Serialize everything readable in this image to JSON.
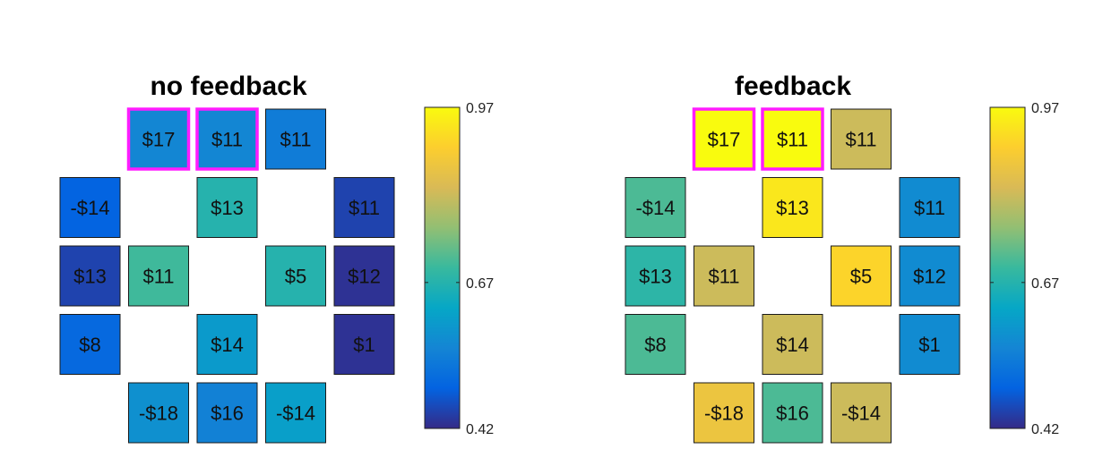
{
  "chart_data": [
    {
      "type": "heatmap",
      "title": "no feedback",
      "colorbar": {
        "min": 0.42,
        "max": 0.97,
        "ticks": [
          "0.97",
          "0.67",
          "0.42"
        ],
        "colormap": "parula"
      },
      "cells": [
        {
          "row": 0,
          "col": 1,
          "label": "$17",
          "value": 0.56,
          "highlight": true
        },
        {
          "row": 0,
          "col": 2,
          "label": "$11",
          "value": 0.56,
          "highlight": true
        },
        {
          "row": 0,
          "col": 3,
          "label": "$11",
          "value": 0.54,
          "highlight": false
        },
        {
          "row": 1,
          "col": 0,
          "label": "-$14",
          "value": 0.49,
          "highlight": false
        },
        {
          "row": 1,
          "col": 2,
          "label": "$13",
          "value": 0.67,
          "highlight": false
        },
        {
          "row": 1,
          "col": 4,
          "label": "$11",
          "value": 0.45,
          "highlight": false
        },
        {
          "row": 2,
          "col": 0,
          "label": "$13",
          "value": 0.45,
          "highlight": false
        },
        {
          "row": 2,
          "col": 1,
          "label": "$11",
          "value": 0.7,
          "highlight": false
        },
        {
          "row": 2,
          "col": 3,
          "label": "$5",
          "value": 0.67,
          "highlight": false
        },
        {
          "row": 2,
          "col": 4,
          "label": "$12",
          "value": 0.43,
          "highlight": false
        },
        {
          "row": 3,
          "col": 0,
          "label": "$8",
          "value": 0.5,
          "highlight": false
        },
        {
          "row": 3,
          "col": 2,
          "label": "$14",
          "value": 0.6,
          "highlight": false
        },
        {
          "row": 3,
          "col": 4,
          "label": "$1",
          "value": 0.43,
          "highlight": false
        },
        {
          "row": 4,
          "col": 1,
          "label": "-$18",
          "value": 0.58,
          "highlight": false
        },
        {
          "row": 4,
          "col": 2,
          "label": "$16",
          "value": 0.55,
          "highlight": false
        },
        {
          "row": 4,
          "col": 3,
          "label": "-$14",
          "value": 0.61,
          "highlight": false
        }
      ]
    },
    {
      "type": "heatmap",
      "title": "feedback",
      "colorbar": {
        "min": 0.42,
        "max": 0.97,
        "ticks": [
          "0.97",
          "0.67",
          "0.42"
        ],
        "colormap": "parula"
      },
      "cells": [
        {
          "row": 0,
          "col": 1,
          "label": "$17",
          "value": 0.97,
          "highlight": true
        },
        {
          "row": 0,
          "col": 2,
          "label": "$11",
          "value": 0.97,
          "highlight": true
        },
        {
          "row": 0,
          "col": 3,
          "label": "$11",
          "value": 0.82,
          "highlight": false
        },
        {
          "row": 1,
          "col": 0,
          "label": "-$14",
          "value": 0.71,
          "highlight": false
        },
        {
          "row": 1,
          "col": 2,
          "label": "$13",
          "value": 0.94,
          "highlight": false
        },
        {
          "row": 1,
          "col": 4,
          "label": "$11",
          "value": 0.57,
          "highlight": false
        },
        {
          "row": 2,
          "col": 0,
          "label": "$13",
          "value": 0.68,
          "highlight": false
        },
        {
          "row": 2,
          "col": 1,
          "label": "$11",
          "value": 0.82,
          "highlight": false
        },
        {
          "row": 2,
          "col": 3,
          "label": "$5",
          "value": 0.91,
          "highlight": false
        },
        {
          "row": 2,
          "col": 4,
          "label": "$12",
          "value": 0.57,
          "highlight": false
        },
        {
          "row": 3,
          "col": 0,
          "label": "$8",
          "value": 0.71,
          "highlight": false
        },
        {
          "row": 3,
          "col": 2,
          "label": "$14",
          "value": 0.82,
          "highlight": false
        },
        {
          "row": 3,
          "col": 4,
          "label": "$1",
          "value": 0.57,
          "highlight": false
        },
        {
          "row": 4,
          "col": 1,
          "label": "-$18",
          "value": 0.87,
          "highlight": false
        },
        {
          "row": 4,
          "col": 2,
          "label": "$16",
          "value": 0.71,
          "highlight": false
        },
        {
          "row": 4,
          "col": 3,
          "label": "-$14",
          "value": 0.82,
          "highlight": false
        }
      ]
    }
  ],
  "colors": {
    "highlight": "#ff1cff",
    "cell_border": "#1a1a1a",
    "colormap_stops": [
      "#352a87",
      "#0363e1",
      "#1485d4",
      "#06a7c6",
      "#38b99e",
      "#92bf73",
      "#d9ba56",
      "#fcce2e",
      "#f9fb0e"
    ]
  }
}
